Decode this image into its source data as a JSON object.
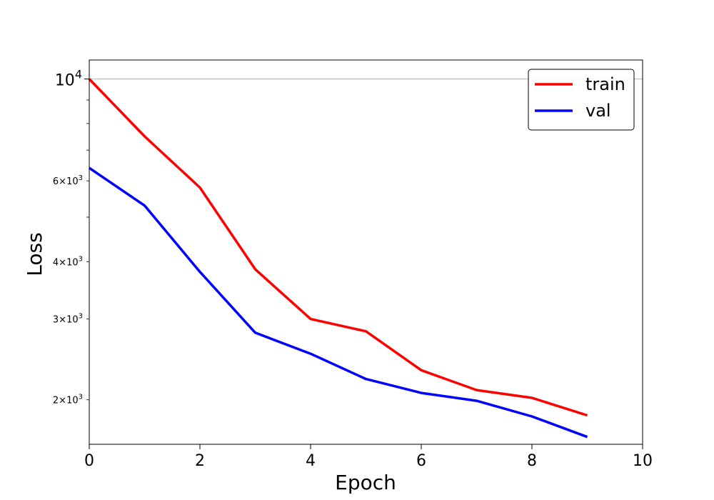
{
  "chart_data": {
    "type": "line",
    "xlabel": "Epoch",
    "ylabel": "Loss",
    "yscale": "log",
    "xlim": [
      0,
      10
    ],
    "ylim": [
      1600,
      11000
    ],
    "grid": "major-y-only",
    "legend_position": "top-right",
    "x_ticks": [
      {
        "value": 0,
        "label": "0"
      },
      {
        "value": 2,
        "label": "2"
      },
      {
        "value": 4,
        "label": "4"
      },
      {
        "value": 6,
        "label": "6"
      },
      {
        "value": 8,
        "label": "8"
      },
      {
        "value": 10,
        "label": "10"
      }
    ],
    "y_major_ticks": [
      {
        "value": 10000,
        "base": "10",
        "exp": "4"
      }
    ],
    "y_minor_ticks": [
      {
        "value": 2000,
        "mant": "2",
        "base": "10",
        "exp": "3"
      },
      {
        "value": 3000,
        "mant": "3",
        "base": "10",
        "exp": "3"
      },
      {
        "value": 4000,
        "mant": "4",
        "base": "10",
        "exp": "3"
      },
      {
        "value": 5000,
        "mant": "",
        "base": "",
        "exp": ""
      },
      {
        "value": 6000,
        "mant": "6",
        "base": "10",
        "exp": "3"
      },
      {
        "value": 7000,
        "mant": "",
        "base": "",
        "exp": ""
      },
      {
        "value": 8000,
        "mant": "",
        "base": "",
        "exp": ""
      },
      {
        "value": 9000,
        "mant": "",
        "base": "",
        "exp": ""
      }
    ],
    "x": [
      0,
      1,
      2,
      3,
      4,
      5,
      6,
      7,
      8,
      9
    ],
    "series": [
      {
        "name": "train",
        "color": "#ff0000",
        "values": [
          10000,
          7500,
          5800,
          3850,
          3000,
          2820,
          2320,
          2100,
          2020,
          1850
        ]
      },
      {
        "name": "val",
        "color": "#0000ff",
        "values": [
          6400,
          5300,
          3800,
          2800,
          2520,
          2220,
          2070,
          1990,
          1840,
          1660
        ]
      }
    ]
  }
}
